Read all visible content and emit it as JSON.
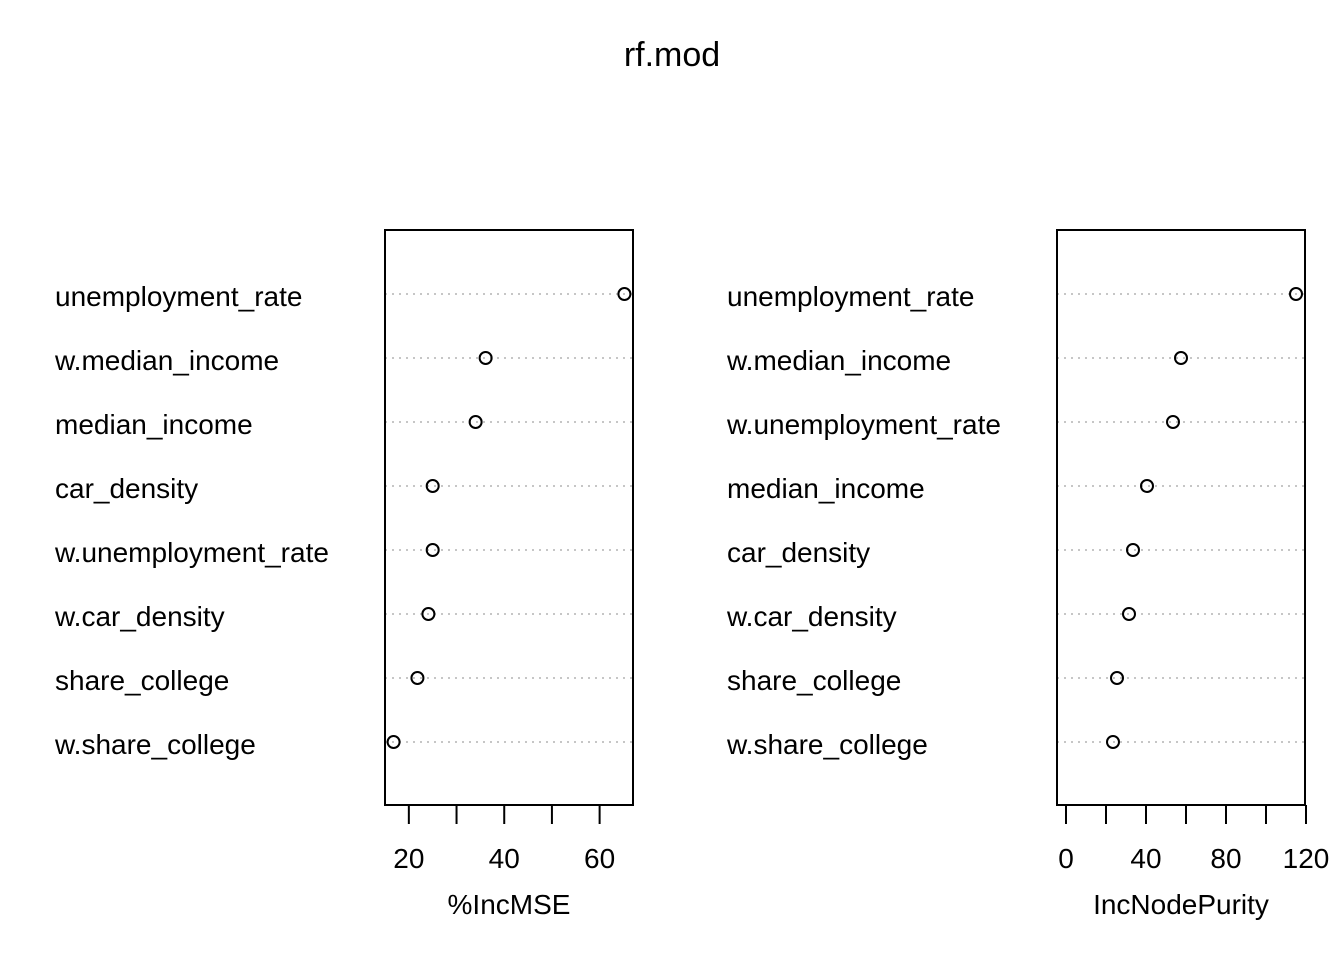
{
  "chart_data": {
    "title": "rf.mod",
    "type": "scatter",
    "panels": [
      {
        "xlabel": "%IncMSE",
        "xlim": [
          15,
          67
        ],
        "ticks": [
          20,
          30,
          40,
          50,
          60
        ],
        "tick_labels": [
          "20",
          "",
          "40",
          "",
          "60"
        ],
        "categories": [
          "unemployment_rate",
          "w.median_income",
          "median_income",
          "car_density",
          "w.unemployment_rate",
          "w.car_density",
          "share_college",
          "w.share_college"
        ],
        "values": [
          65.2,
          36.1,
          34.0,
          25.0,
          25.0,
          24.1,
          21.8,
          16.8
        ]
      },
      {
        "xlabel": "IncNodePurity",
        "xlim": [
          -4.5,
          119.5
        ],
        "ticks": [
          0,
          20,
          40,
          60,
          80,
          100,
          120
        ],
        "tick_labels": [
          "0",
          "",
          "40",
          "",
          "80",
          "",
          "120"
        ],
        "categories": [
          "unemployment_rate",
          "w.median_income",
          "w.unemployment_rate",
          "median_income",
          "car_density",
          "w.car_density",
          "share_college",
          "w.share_college"
        ],
        "values": [
          115.0,
          57.5,
          53.5,
          40.5,
          33.5,
          31.5,
          25.5,
          23.5
        ]
      }
    ]
  }
}
